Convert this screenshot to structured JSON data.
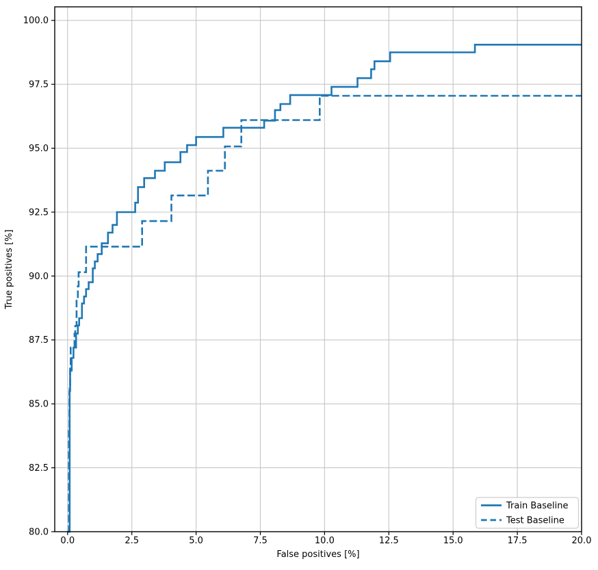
{
  "figure": {
    "xlabel": "False positives [%]",
    "ylabel": "True positives [%]"
  },
  "chart_data": {
    "type": "line",
    "subtype": "step-post-roc",
    "title": "",
    "xlabel": "False positives [%]",
    "ylabel": "True positives [%]",
    "xlim": [
      -0.5,
      20.0
    ],
    "ylim": [
      80.0,
      100.53
    ],
    "xticks": [
      0.0,
      2.5,
      5.0,
      7.5,
      10.0,
      12.5,
      15.0,
      17.5,
      20.0
    ],
    "yticks": [
      80.0,
      82.5,
      85.0,
      87.5,
      90.0,
      92.5,
      95.0,
      97.5,
      100.0
    ],
    "grid": true,
    "grid_color": "#c6c6c6",
    "line_color": "#1f77b4",
    "legend": {
      "position": "lower right",
      "entries": [
        "Train Baseline",
        "Test Baseline"
      ]
    },
    "series": [
      {
        "name": "Train Baseline",
        "style": "solid",
        "color": "#1f77b4",
        "step": "post",
        "points": [
          [
            0.0,
            80.0
          ],
          [
            0.08,
            85.6
          ],
          [
            0.1,
            86.3
          ],
          [
            0.16,
            86.8
          ],
          [
            0.23,
            87.2
          ],
          [
            0.33,
            87.75
          ],
          [
            0.4,
            88.07
          ],
          [
            0.45,
            88.35
          ],
          [
            0.56,
            88.93
          ],
          [
            0.64,
            89.2
          ],
          [
            0.72,
            89.49
          ],
          [
            0.82,
            89.76
          ],
          [
            0.98,
            90.3
          ],
          [
            1.06,
            90.57
          ],
          [
            1.17,
            90.86
          ],
          [
            1.33,
            91.28
          ],
          [
            1.57,
            91.7
          ],
          [
            1.75,
            92.0
          ],
          [
            1.92,
            92.5
          ],
          [
            2.63,
            92.87
          ],
          [
            2.74,
            93.48
          ],
          [
            2.98,
            93.83
          ],
          [
            3.4,
            94.12
          ],
          [
            3.78,
            94.45
          ],
          [
            4.39,
            94.85
          ],
          [
            4.65,
            95.12
          ],
          [
            5.0,
            95.44
          ],
          [
            6.06,
            95.8
          ],
          [
            7.65,
            96.08
          ],
          [
            8.07,
            96.49
          ],
          [
            8.28,
            96.73
          ],
          [
            8.66,
            97.08
          ],
          [
            10.27,
            97.4
          ],
          [
            11.28,
            97.74
          ],
          [
            11.81,
            98.09
          ],
          [
            11.94,
            98.4
          ],
          [
            12.55,
            98.75
          ],
          [
            15.85,
            99.05
          ],
          [
            20.0,
            99.05
          ]
        ]
      },
      {
        "name": "Test Baseline",
        "style": "dashed",
        "color": "#1f77b4",
        "step": "post",
        "points": [
          [
            0.0,
            80.0
          ],
          [
            0.05,
            84.0
          ],
          [
            0.07,
            85.5
          ],
          [
            0.1,
            86.5
          ],
          [
            0.12,
            87.2
          ],
          [
            0.27,
            87.75
          ],
          [
            0.3,
            88.05
          ],
          [
            0.35,
            89.1
          ],
          [
            0.4,
            89.6
          ],
          [
            0.43,
            90.15
          ],
          [
            0.72,
            91.15
          ],
          [
            2.9,
            92.15
          ],
          [
            4.04,
            93.15
          ],
          [
            5.46,
            94.12
          ],
          [
            6.12,
            95.07
          ],
          [
            6.76,
            96.1
          ],
          [
            9.81,
            97.05
          ],
          [
            20.0,
            97.05
          ]
        ]
      }
    ]
  }
}
